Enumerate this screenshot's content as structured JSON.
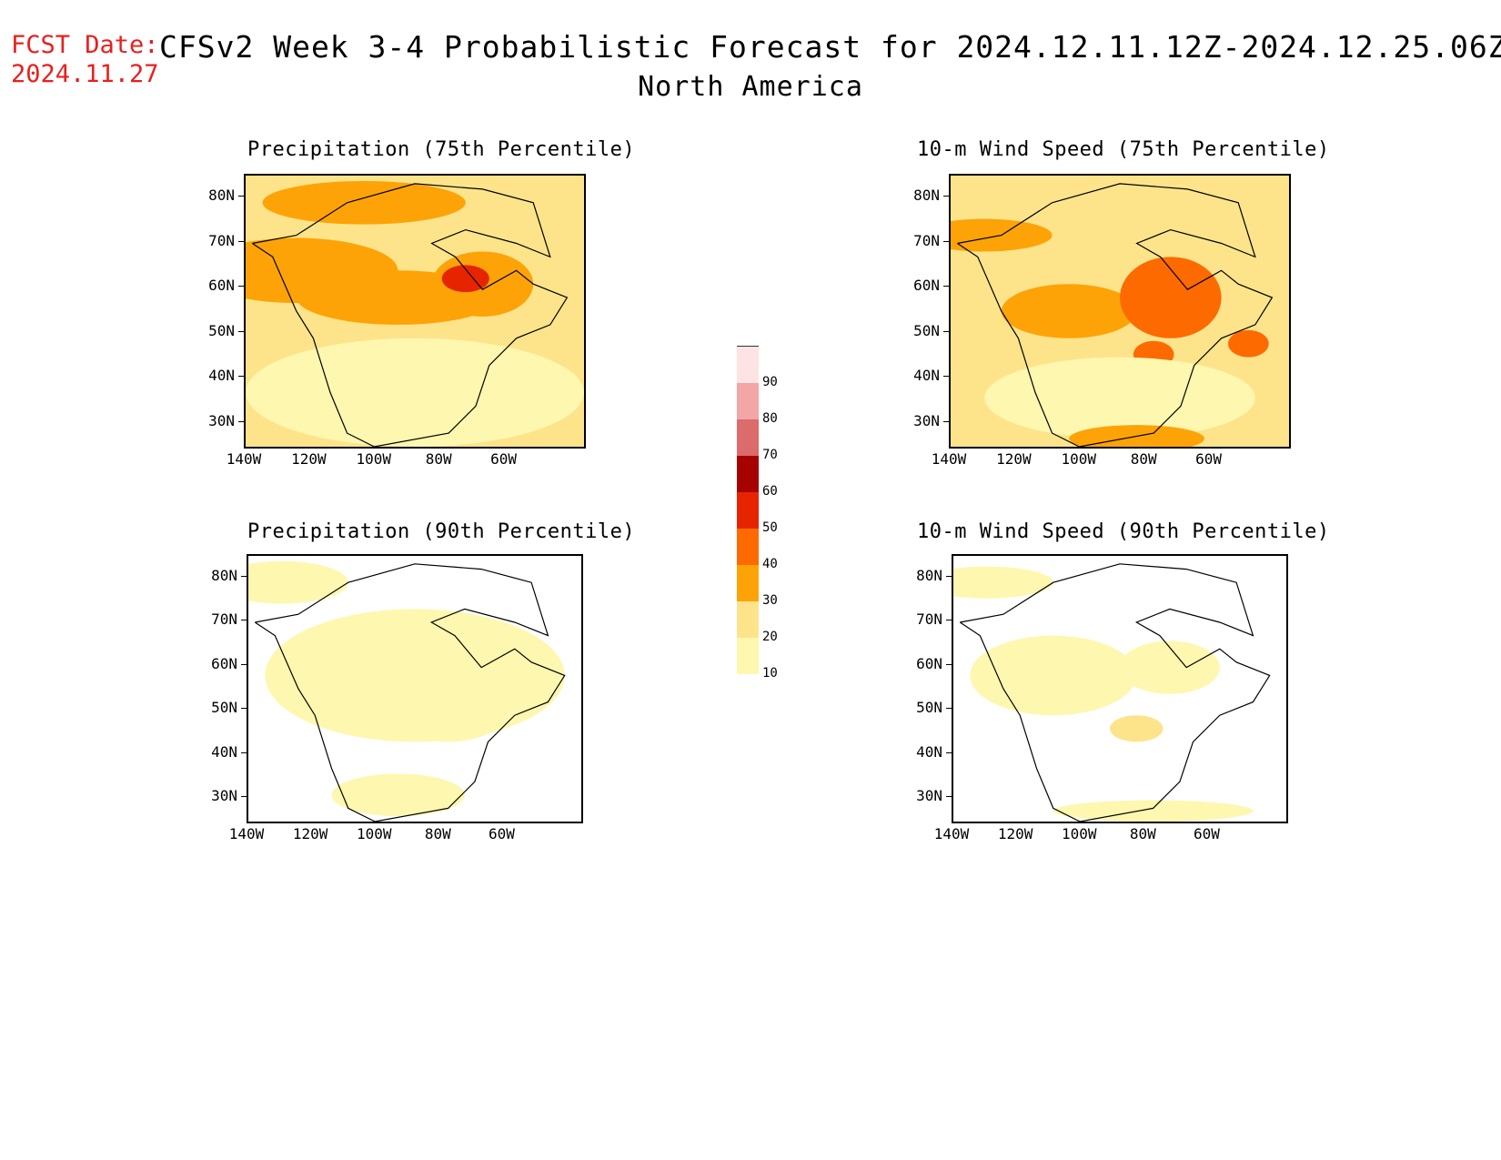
{
  "header": {
    "fcst_label": "FCST Date:",
    "fcst_date": "2024.11.27",
    "title": "CFSv2 Week 3-4 Probabilistic Forecast for 2024.12.11.12Z-2024.12.25.06Z",
    "subtitle": "North America"
  },
  "panels": [
    {
      "id": "precip75",
      "title": "Precipitation (75th Percentile)"
    },
    {
      "id": "wind75",
      "title": "10-m Wind Speed (75th Percentile)"
    },
    {
      "id": "precip90",
      "title": "Precipitation (90th Percentile)"
    },
    {
      "id": "wind90",
      "title": "10-m Wind Speed (90th Percentile)"
    }
  ],
  "axes": {
    "lat_labels": [
      "80N",
      "70N",
      "60N",
      "50N",
      "40N",
      "30N"
    ],
    "lon_labels": [
      "140W",
      "120W",
      "100W",
      "80W",
      "60W"
    ]
  },
  "colorbar": {
    "levels": [
      "10",
      "20",
      "30",
      "40",
      "50",
      "60",
      "70",
      "80",
      "90"
    ],
    "colors": [
      "#fef7b0",
      "#fde48b",
      "#fda307",
      "#fd6a00",
      "#e62500",
      "#a40300",
      "#dc6b6b",
      "#f2a6a6",
      "#fde3e3"
    ]
  }
}
